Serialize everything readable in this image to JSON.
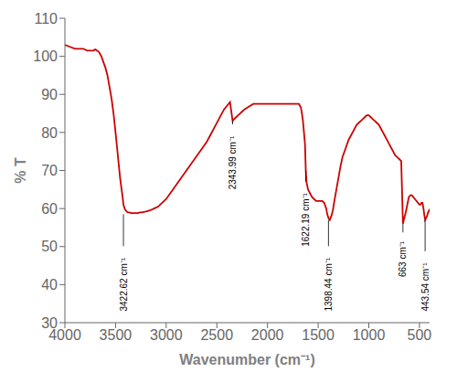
{
  "chart_data": {
    "type": "line",
    "xlabel": "Wavenumber (cm⁻¹)",
    "ylabel": "% T",
    "color": "#cc0000",
    "grid": false,
    "xlim": [
      4000,
      400
    ],
    "ylim": [
      30,
      110
    ],
    "xticks": [
      4000,
      3500,
      3000,
      2500,
      2000,
      1500,
      1000,
      500
    ],
    "yticks": [
      30,
      40,
      50,
      60,
      70,
      80,
      90,
      100,
      110
    ],
    "annotations": [
      {
        "label": "3422.62 cm⁻¹",
        "x": 3422,
        "y": 58.5,
        "text_y": 33
      },
      {
        "label": "2343.99 cm⁻¹",
        "x": 2344,
        "y": 83,
        "text_y": 65
      },
      {
        "label": "1622.19 cm⁻¹",
        "x": 1622,
        "y": 70,
        "text_y": 50
      },
      {
        "label": "1398.44 cm⁻¹",
        "x": 1398,
        "y": 57,
        "text_y": 33
      },
      {
        "label": "663 cm⁻¹",
        "x": 663,
        "y": 56,
        "text_y": 42
      },
      {
        "label": "443.54 cm⁻¹",
        "x": 444,
        "y": 57,
        "text_y": 33
      }
    ],
    "x": [
      4000,
      3950,
      3900,
      3860,
      3820,
      3780,
      3750,
      3720,
      3700,
      3680,
      3660,
      3640,
      3620,
      3600,
      3580,
      3560,
      3540,
      3520,
      3500,
      3485,
      3470,
      3455,
      3440,
      3430,
      3422,
      3410,
      3400,
      3390,
      3380,
      3370,
      3360,
      3350,
      3340,
      3320,
      3300,
      3280,
      3260,
      3240,
      3200,
      3160,
      3120,
      3080,
      3040,
      3000,
      2960,
      2920,
      2880,
      2840,
      2800,
      2760,
      2720,
      2680,
      2640,
      2600,
      2560,
      2520,
      2490,
      2460,
      2430,
      2400,
      2370,
      2344,
      2330,
      2310,
      2290,
      2270,
      2250,
      2230,
      2200,
      2170,
      2140,
      2110,
      2080,
      2050,
      2020,
      1990,
      1960,
      1930,
      1900,
      1870,
      1840,
      1810,
      1780,
      1750,
      1720,
      1700,
      1690,
      1680,
      1670,
      1660,
      1650,
      1640,
      1630,
      1622,
      1615,
      1600,
      1580,
      1560,
      1540,
      1520,
      1500,
      1480,
      1460,
      1440,
      1420,
      1410,
      1398,
      1385,
      1370,
      1355,
      1340,
      1320,
      1300,
      1280,
      1260,
      1240,
      1220,
      1200,
      1180,
      1160,
      1140,
      1120,
      1100,
      1080,
      1060,
      1040,
      1020,
      1000,
      980,
      960,
      940,
      920,
      900,
      880,
      860,
      840,
      820,
      800,
      780,
      760,
      740,
      720,
      700,
      680,
      663,
      650,
      635,
      620,
      605,
      590,
      575,
      560,
      545,
      530,
      515,
      500,
      490,
      480,
      470,
      460,
      453,
      444,
      435,
      425,
      415,
      405,
      400
    ],
    "values": [
      103,
      102.5,
      102,
      102,
      102,
      101.5,
      101.5,
      101.5,
      101.8,
      101.5,
      101,
      100,
      98.5,
      97,
      95,
      92,
      89,
      85,
      80,
      76,
      72,
      68,
      65,
      63,
      61,
      60,
      59.5,
      59.2,
      59,
      59,
      59,
      58.8,
      58.8,
      58.8,
      58.8,
      58.8,
      59,
      59,
      59.2,
      59.5,
      60,
      60.5,
      61.5,
      62.5,
      64,
      65.5,
      67,
      68.5,
      70,
      71.5,
      73,
      74.5,
      76,
      77.5,
      79.5,
      81.5,
      83,
      84.5,
      86,
      87,
      88,
      83,
      83.5,
      84,
      84.5,
      85,
      85.5,
      86,
      86.5,
      87,
      87.5,
      87.5,
      87.5,
      87.5,
      87.5,
      87.5,
      87.5,
      87.5,
      87.5,
      87.5,
      87.5,
      87.5,
      87.5,
      87.5,
      87.5,
      87.5,
      87.5,
      87,
      86.5,
      85,
      83,
      80,
      77,
      70,
      67,
      65,
      64,
      63,
      62.5,
      62,
      62,
      62,
      62,
      61.5,
      60,
      58.5,
      57.5,
      57,
      58,
      59.5,
      62,
      65,
      68,
      71,
      73.5,
      75,
      76.5,
      78,
      79,
      80,
      81,
      82,
      82.5,
      83,
      83.5,
      84,
      84.5,
      84.5,
      84,
      83.5,
      83,
      82.5,
      82,
      81,
      80,
      79,
      78,
      77,
      76,
      75,
      74,
      73.5,
      73,
      72.5,
      56,
      57.5,
      59,
      61,
      63,
      63.5,
      63.5,
      63,
      62.5,
      62,
      61.5,
      61,
      61,
      61.5,
      61.5,
      60,
      58.5,
      57,
      57.5,
      58,
      59,
      59.5,
      59
    ]
  }
}
